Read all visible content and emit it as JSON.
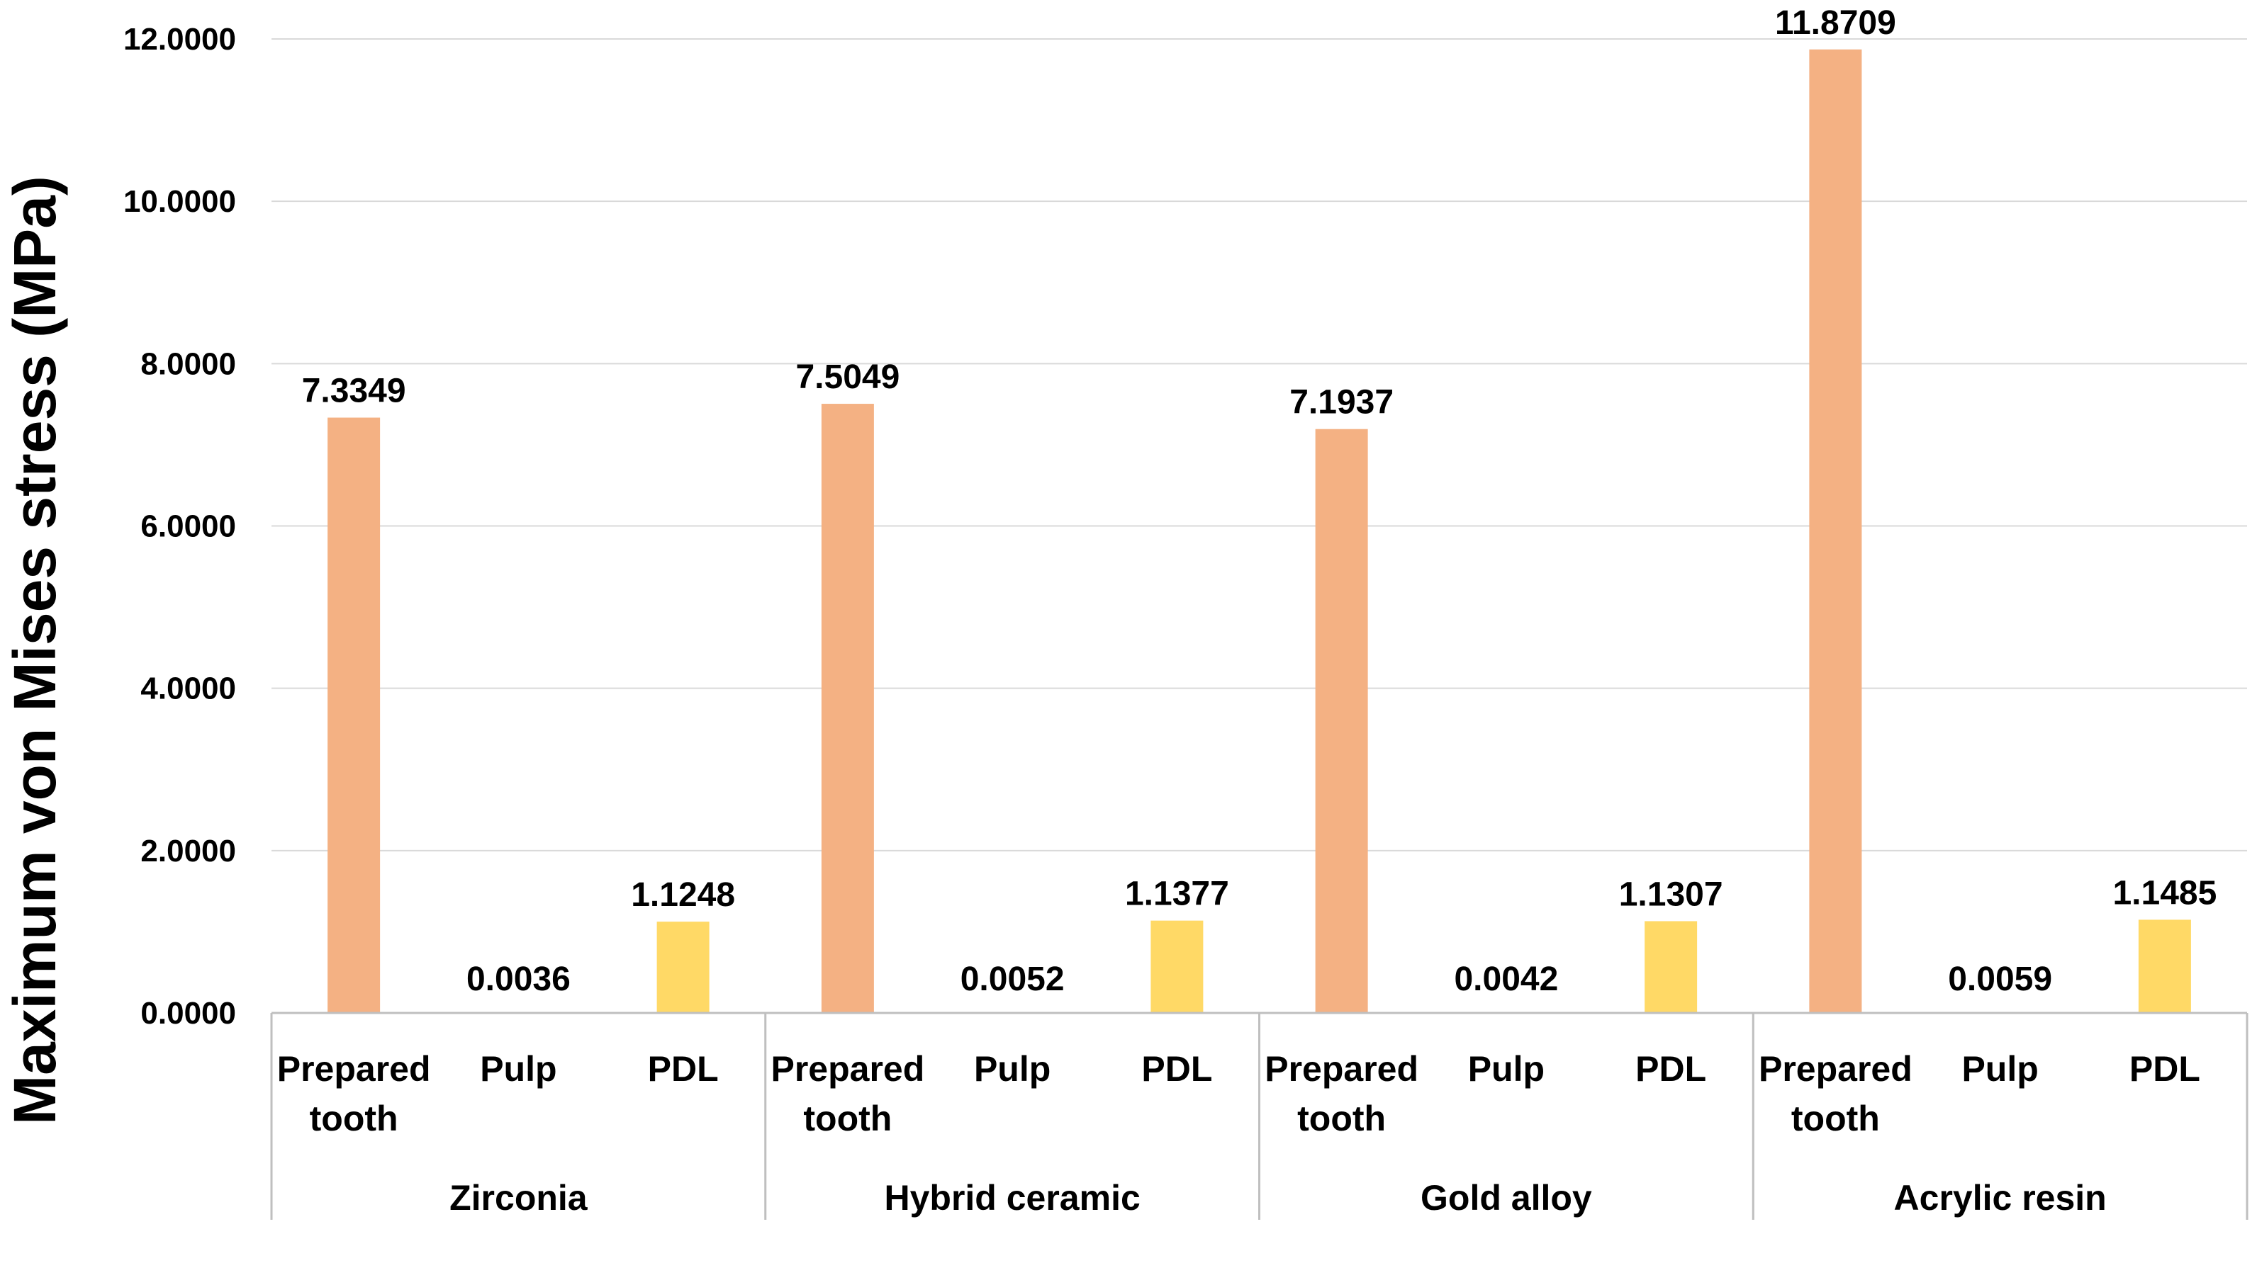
{
  "chart_data": {
    "type": "bar",
    "title": "",
    "xlabel": "",
    "ylabel": "Maximum von Mises stress (MPa)",
    "ylim": [
      0,
      12
    ],
    "grid": true,
    "yticks": [
      "0.0000",
      "2.0000",
      "4.0000",
      "6.0000",
      "8.0000",
      "10.0000",
      "12.0000"
    ],
    "ytick_values": [
      0,
      2,
      4,
      6,
      8,
      10,
      12
    ],
    "groups": [
      "Zirconia",
      "Hybrid ceramic",
      "Gold alloy",
      "Acrylic resin"
    ],
    "categories": [
      {
        "line1": "Prepared",
        "line2": "tooth"
      },
      {
        "line1": "Pulp",
        "line2": ""
      },
      {
        "line1": "PDL",
        "line2": ""
      }
    ],
    "category_colors": [
      "#F4B183",
      "#F4B183",
      "#FFD966"
    ],
    "values": [
      [
        7.3349,
        0.0036,
        1.1248
      ],
      [
        7.5049,
        0.0052,
        1.1377
      ],
      [
        7.1937,
        0.0042,
        1.1307
      ],
      [
        11.8709,
        0.0059,
        1.1485
      ]
    ],
    "labels": [
      [
        "7.3349",
        "0.0036",
        "1.1248"
      ],
      [
        "7.5049",
        "0.0052",
        "1.1377"
      ],
      [
        "7.1937",
        "0.0042",
        "1.1307"
      ],
      [
        "11.8709",
        "0.0059",
        "1.1485"
      ]
    ],
    "gridline_color": "#D9D9D9",
    "axis_color": "#BFBFBF"
  }
}
